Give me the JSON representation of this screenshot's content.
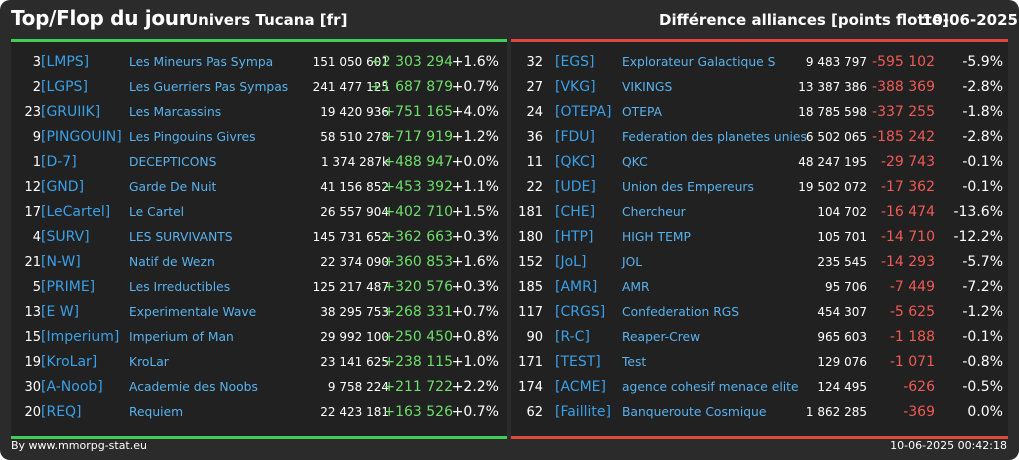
{
  "header": {
    "title": "Top/Flop du jour",
    "subtitle": "Univers Tucana [fr]",
    "right_title": "Différence alliances [points flotte]",
    "date": "10-06-2025"
  },
  "colors": {
    "background": "#2b2b2b",
    "panel": "#212121",
    "positive": "#6ddf6a",
    "negative": "#f05a55",
    "tag": "#3aa0e8",
    "name": "#58b2ee"
  },
  "top": [
    {
      "rank": "3",
      "tag": "[LMPS]",
      "name": "Les Mineurs Pas Sympa",
      "points": "151 050 601",
      "diff": "+2 303 294",
      "pct": "+1.6%"
    },
    {
      "rank": "2",
      "tag": "[LGPS]",
      "name": "Les Guerriers Pas Sympas",
      "points": "241 477 125",
      "diff": "+1 687 879",
      "pct": "+0.7%"
    },
    {
      "rank": "23",
      "tag": "[GRUIIK]",
      "name": "Les Marcassins",
      "points": "19 420 936",
      "diff": "+751 165",
      "pct": "+4.0%"
    },
    {
      "rank": "9",
      "tag": "[PINGOUIN]",
      "name": "Les Pingouins Givres",
      "points": "58 510 278",
      "diff": "+717 919",
      "pct": "+1.2%"
    },
    {
      "rank": "1",
      "tag": "[D-7]",
      "name": "DECEPTICONS",
      "points": "1 374 287k",
      "diff": "+488 947",
      "pct": "+0.0%"
    },
    {
      "rank": "12",
      "tag": "[GND]",
      "name": "Garde De Nuit",
      "points": "41 156 852",
      "diff": "+453 392",
      "pct": "+1.1%"
    },
    {
      "rank": "17",
      "tag": "[LeCartel]",
      "name": "Le Cartel",
      "points": "26 557 904",
      "diff": "+402 710",
      "pct": "+1.5%"
    },
    {
      "rank": "4",
      "tag": "[SURV]",
      "name": "LES SURVIVANTS",
      "points": "145 731 652",
      "diff": "+362 663",
      "pct": "+0.3%"
    },
    {
      "rank": "21",
      "tag": "[N-W]",
      "name": "Natif de Wezn",
      "points": "22 374 090",
      "diff": "+360 853",
      "pct": "+1.6%"
    },
    {
      "rank": "5",
      "tag": "[PRIME]",
      "name": "Les Irreductibles",
      "points": "125 217 487",
      "diff": "+320 576",
      "pct": "+0.3%"
    },
    {
      "rank": "13",
      "tag": "[E W]",
      "name": "Experimentale Wave",
      "points": "38 295 753",
      "diff": "+268 331",
      "pct": "+0.7%"
    },
    {
      "rank": "15",
      "tag": "[Imperium]",
      "name": "Imperium of Man",
      "points": "29 992 100",
      "diff": "+250 450",
      "pct": "+0.8%"
    },
    {
      "rank": "19",
      "tag": "[KroLar]",
      "name": "KroLar",
      "points": "23 141 625",
      "diff": "+238 115",
      "pct": "+1.0%"
    },
    {
      "rank": "30",
      "tag": "[A-Noob]",
      "name": "Academie des Noobs",
      "points": "9 758 224",
      "diff": "+211 722",
      "pct": "+2.2%"
    },
    {
      "rank": "20",
      "tag": "[REQ]",
      "name": "Requiem",
      "points": "22 423 181",
      "diff": "+163 526",
      "pct": "+0.7%"
    }
  ],
  "flop": [
    {
      "rank": "32",
      "tag": "[EGS]",
      "name": "Explorateur Galactique S",
      "points": "9 483 797",
      "diff": "-595 102",
      "pct": "-5.9%"
    },
    {
      "rank": "27",
      "tag": "[VKG]",
      "name": "VIKINGS",
      "points": "13 387 386",
      "diff": "-388 369",
      "pct": "-2.8%"
    },
    {
      "rank": "24",
      "tag": "[OTEPA]",
      "name": "OTEPA",
      "points": "18 785 598",
      "diff": "-337 255",
      "pct": "-1.8%"
    },
    {
      "rank": "36",
      "tag": "[FDU]",
      "name": "Federation des planetes unies",
      "points": "6 502 065",
      "diff": "-185 242",
      "pct": "-2.8%"
    },
    {
      "rank": "11",
      "tag": "[QKC]",
      "name": "QKC",
      "points": "48 247 195",
      "diff": "-29 743",
      "pct": "-0.1%"
    },
    {
      "rank": "22",
      "tag": "[UDE]",
      "name": "Union des Empereurs",
      "points": "19 502 072",
      "diff": "-17 362",
      "pct": "-0.1%"
    },
    {
      "rank": "181",
      "tag": "[CHE]",
      "name": "Chercheur",
      "points": "104 702",
      "diff": "-16 474",
      "pct": "-13.6%"
    },
    {
      "rank": "180",
      "tag": "[HTP]",
      "name": "HIGH TEMP",
      "points": "105 701",
      "diff": "-14 710",
      "pct": "-12.2%"
    },
    {
      "rank": "152",
      "tag": "[JoL]",
      "name": "JOL",
      "points": "235 545",
      "diff": "-14 293",
      "pct": "-5.7%"
    },
    {
      "rank": "185",
      "tag": "[AMR]",
      "name": "AMR",
      "points": "95 706",
      "diff": "-7 449",
      "pct": "-7.2%"
    },
    {
      "rank": "117",
      "tag": "[CRGS]",
      "name": "Confederation RGS",
      "points": "454 307",
      "diff": "-5 625",
      "pct": "-1.2%"
    },
    {
      "rank": "90",
      "tag": "[R-C]",
      "name": "Reaper-Crew",
      "points": "965 603",
      "diff": "-1 188",
      "pct": "-0.1%"
    },
    {
      "rank": "171",
      "tag": "[TEST]",
      "name": "Test",
      "points": "129 076",
      "diff": "-1 071",
      "pct": "-0.8%"
    },
    {
      "rank": "174",
      "tag": "[ACME]",
      "name": "agence cohesif menace elite",
      "points": "124 495",
      "diff": "-626",
      "pct": "-0.5%"
    },
    {
      "rank": "62",
      "tag": "[Faillite]",
      "name": "Banqueroute Cosmique",
      "points": "1 862 285",
      "diff": "-369",
      "pct": "0.0%"
    }
  ],
  "footer": {
    "source": "By www.mmorpg-stat.eu",
    "timestamp": "10-06-2025 00:42:18"
  }
}
